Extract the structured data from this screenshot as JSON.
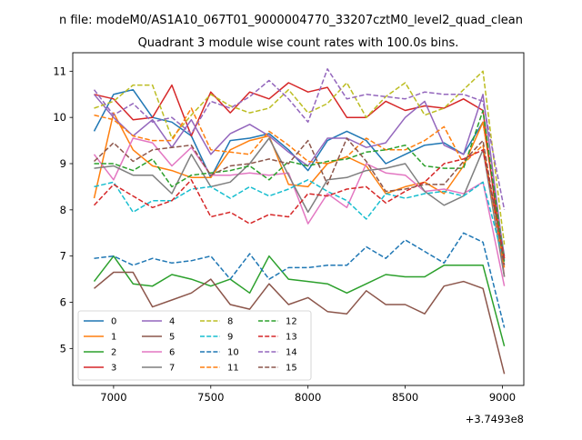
{
  "suptitle": "n file: modeM0/AS1A10_067T01_9000004770_33207cztM0_level2_quad_clean",
  "chart_data": {
    "type": "line",
    "title": "Quadrant 3 module wise count rates with 100.0s bins.",
    "xlabel": "",
    "ylabel": "",
    "x_offset_label": "+3.7493e8",
    "xlim": [
      6790,
      9110
    ],
    "ylim": [
      4.2,
      11.4
    ],
    "xticks": [
      7000,
      7500,
      8000,
      8500,
      9000
    ],
    "xtick_labels": [
      "7000",
      "7500",
      "8000",
      "8500",
      "9000"
    ],
    "yticks": [
      5,
      6,
      7,
      8,
      9,
      10,
      11
    ],
    "ytick_labels": [
      "5",
      "6",
      "7",
      "8",
      "9",
      "10",
      "11"
    ],
    "grid": false,
    "legend_position": "lower-left",
    "x": [
      6900,
      7000,
      7100,
      7200,
      7300,
      7400,
      7500,
      7600,
      7700,
      7800,
      7900,
      8000,
      8100,
      8200,
      8300,
      8400,
      8500,
      8600,
      8700,
      8800,
      8900,
      9010
    ],
    "series": [
      {
        "name": "0",
        "color": "#1f77b4",
        "dash": "solid",
        "values": [
          9.7,
          10.5,
          10.6,
          10.0,
          9.9,
          9.6,
          8.7,
          9.5,
          9.55,
          9.65,
          9.3,
          8.85,
          9.5,
          9.7,
          9.5,
          9.0,
          9.2,
          9.4,
          9.45,
          9.2,
          9.9,
          7.0
        ]
      },
      {
        "name": "1",
        "color": "#ff7f0e",
        "dash": "solid",
        "values": [
          8.25,
          10.1,
          9.3,
          8.95,
          8.85,
          8.7,
          8.7,
          9.3,
          9.5,
          9.6,
          8.55,
          8.5,
          9.0,
          9.15,
          8.95,
          8.35,
          8.5,
          8.6,
          8.35,
          8.95,
          9.9,
          6.95
        ]
      },
      {
        "name": "2",
        "color": "#2ca02c",
        "dash": "solid",
        "values": [
          6.45,
          7.0,
          6.4,
          6.35,
          6.6,
          6.5,
          6.35,
          6.5,
          6.2,
          7.0,
          6.5,
          6.45,
          6.4,
          6.2,
          6.4,
          6.6,
          6.55,
          6.55,
          6.8,
          6.8,
          6.8,
          5.05
        ]
      },
      {
        "name": "3",
        "color": "#d62728",
        "dash": "solid",
        "values": [
          10.5,
          10.4,
          9.95,
          10.0,
          10.7,
          9.6,
          10.55,
          10.1,
          10.55,
          10.4,
          10.75,
          10.55,
          10.65,
          10.0,
          10.0,
          10.35,
          10.15,
          10.25,
          10.2,
          10.4,
          10.15,
          6.55
        ]
      },
      {
        "name": "4",
        "color": "#9467bd",
        "dash": "solid",
        "values": [
          10.5,
          10.0,
          9.6,
          9.95,
          9.35,
          9.95,
          9.2,
          9.65,
          9.85,
          9.6,
          9.25,
          8.95,
          9.55,
          9.55,
          9.35,
          9.45,
          10.0,
          10.35,
          9.4,
          9.2,
          10.5,
          6.9
        ]
      },
      {
        "name": "5",
        "color": "#8c564b",
        "dash": "solid",
        "values": [
          6.3,
          6.65,
          6.65,
          5.9,
          6.05,
          6.2,
          6.5,
          5.95,
          5.85,
          6.4,
          5.95,
          6.1,
          5.8,
          5.75,
          6.25,
          5.95,
          5.95,
          5.75,
          6.35,
          6.45,
          6.3,
          4.45
        ]
      },
      {
        "name": "6",
        "color": "#e377c2",
        "dash": "solid",
        "values": [
          9.2,
          8.65,
          9.55,
          9.45,
          8.95,
          9.35,
          8.75,
          8.75,
          8.8,
          8.75,
          8.8,
          7.7,
          8.35,
          8.05,
          9.0,
          8.8,
          8.75,
          8.4,
          8.45,
          8.35,
          8.6,
          6.35
        ]
      },
      {
        "name": "7",
        "color": "#7f7f7f",
        "dash": "solid",
        "values": [
          8.9,
          8.95,
          8.75,
          8.75,
          8.35,
          9.2,
          8.5,
          8.6,
          9.0,
          9.55,
          8.75,
          7.95,
          8.65,
          8.7,
          8.85,
          8.9,
          9.0,
          8.4,
          8.1,
          8.3,
          9.3,
          6.55
        ]
      },
      {
        "name": "8",
        "color": "#bcbd22",
        "dash": "dashed",
        "values": [
          10.2,
          10.35,
          10.7,
          10.7,
          9.55,
          10.05,
          10.5,
          10.25,
          10.1,
          10.2,
          10.6,
          10.1,
          10.3,
          10.75,
          10.0,
          10.45,
          10.75,
          10.05,
          10.2,
          10.6,
          11.0,
          7.25
        ]
      },
      {
        "name": "9",
        "color": "#17becf",
        "dash": "dashed",
        "values": [
          8.5,
          8.6,
          7.95,
          8.2,
          8.2,
          8.45,
          8.5,
          8.25,
          8.5,
          8.3,
          8.45,
          8.65,
          8.4,
          8.2,
          7.8,
          8.35,
          8.25,
          8.35,
          8.4,
          8.3,
          8.6,
          6.85
        ]
      },
      {
        "name": "10",
        "color": "#1f77b4",
        "dash": "dashed",
        "values": [
          6.95,
          7.0,
          6.8,
          6.95,
          6.85,
          6.9,
          7.0,
          6.5,
          7.05,
          6.5,
          6.75,
          6.75,
          6.8,
          6.8,
          7.2,
          6.95,
          7.35,
          7.1,
          6.85,
          7.5,
          7.3,
          5.45
        ]
      },
      {
        "name": "11",
        "color": "#ff7f0e",
        "dash": "dashed",
        "values": [
          10.05,
          9.95,
          9.6,
          9.5,
          9.5,
          10.2,
          9.3,
          9.25,
          9.2,
          9.7,
          9.4,
          9.05,
          9.0,
          9.15,
          9.55,
          9.3,
          9.3,
          9.5,
          9.8,
          9.0,
          9.4,
          6.75
        ]
      },
      {
        "name": "12",
        "color": "#2ca02c",
        "dash": "dashed",
        "values": [
          9.0,
          9.0,
          8.85,
          9.1,
          8.5,
          8.75,
          8.8,
          8.85,
          8.95,
          8.65,
          9.05,
          8.95,
          9.05,
          9.1,
          9.25,
          9.3,
          9.4,
          8.95,
          8.9,
          8.9,
          10.15,
          6.85
        ]
      },
      {
        "name": "13",
        "color": "#d62728",
        "dash": "dashed",
        "values": [
          8.1,
          8.55,
          8.3,
          8.05,
          8.2,
          8.65,
          7.85,
          7.95,
          7.7,
          7.9,
          7.85,
          8.35,
          8.3,
          8.45,
          8.5,
          8.15,
          8.4,
          8.6,
          9.0,
          9.1,
          9.3,
          6.95
        ]
      },
      {
        "name": "14",
        "color": "#9467bd",
        "dash": "dashed",
        "values": [
          10.6,
          10.05,
          10.3,
          9.9,
          10.0,
          9.65,
          10.35,
          10.2,
          10.45,
          10.8,
          10.4,
          9.9,
          11.05,
          10.4,
          10.5,
          10.45,
          10.4,
          10.55,
          10.5,
          10.5,
          10.35,
          8.0
        ]
      },
      {
        "name": "15",
        "color": "#8c564b",
        "dash": "dashed",
        "values": [
          9.05,
          9.45,
          9.05,
          9.3,
          9.35,
          9.4,
          8.75,
          8.95,
          9.0,
          9.1,
          9.0,
          9.5,
          8.55,
          9.55,
          9.05,
          8.4,
          8.45,
          8.55,
          8.55,
          9.05,
          9.5,
          6.8
        ]
      }
    ]
  }
}
